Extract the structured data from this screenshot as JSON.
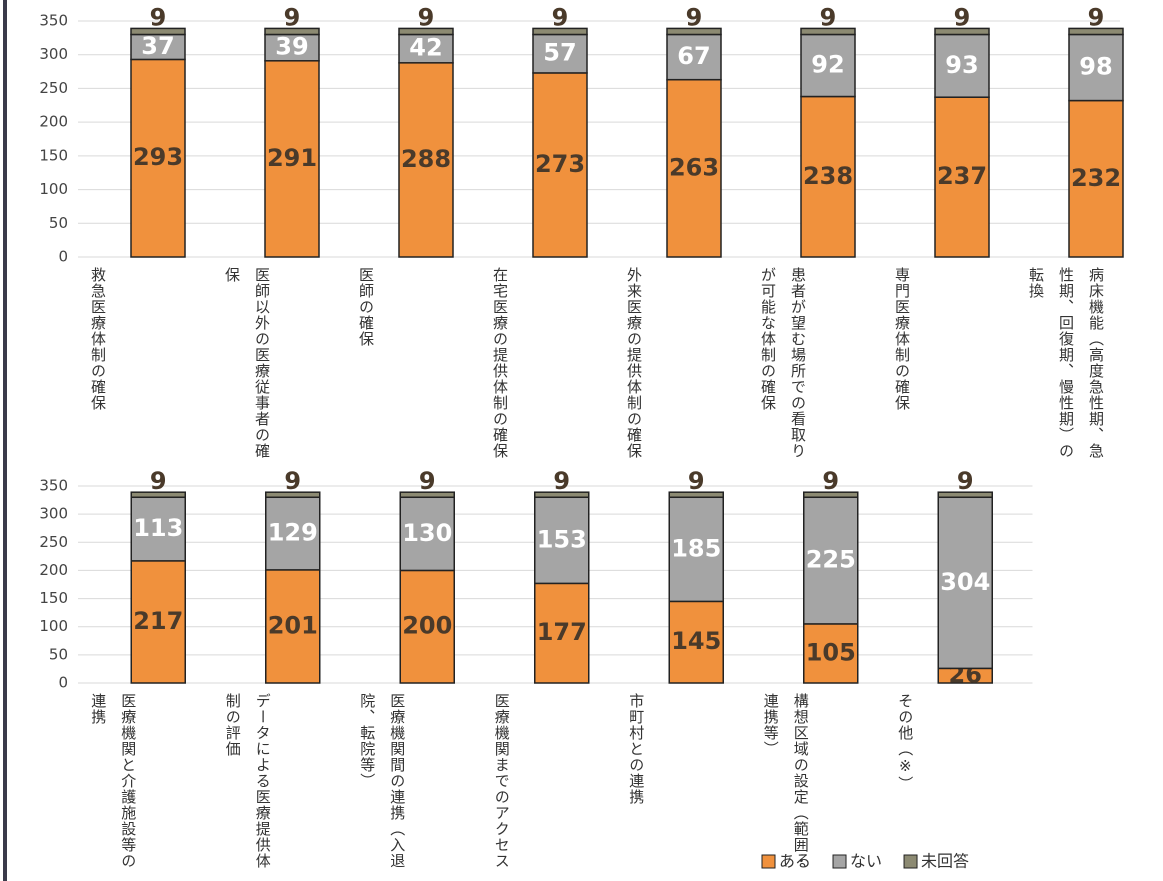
{
  "chart_data": [
    {
      "type": "bar",
      "stacked": true,
      "grid": true,
      "ylim": [
        0,
        350
      ],
      "yticks": [
        0,
        50,
        100,
        150,
        200,
        250,
        300,
        350
      ],
      "categories": [
        "救急医療体制の確保",
        "医師以外の医療従事者の確保",
        "医師の確保",
        "在宅医療の提供体制の確保",
        "外来医療の提供体制の確保",
        "患者が望む場所での看取りが可能な体制の確保",
        "専門医療体制の確保",
        "病床機能（高度急性期、急性期、回復期、慢性期）の転換"
      ],
      "series": [
        {
          "color": "#f0913d",
          "values": [
            293,
            291,
            288,
            273,
            263,
            238,
            237,
            232
          ]
        },
        {
          "color": "#a5a5a5",
          "values": [
            37,
            39,
            42,
            57,
            67,
            92,
            93,
            98
          ]
        },
        {
          "color": "#8c8a72",
          "values": [
            9,
            9,
            9,
            9,
            9,
            9,
            9,
            9
          ]
        }
      ]
    },
    {
      "type": "bar",
      "stacked": true,
      "grid": true,
      "legend": "lower right",
      "ylim": [
        0,
        350
      ],
      "yticks": [
        0,
        50,
        100,
        150,
        200,
        250,
        300,
        350
      ],
      "categories": [
        "医療機関と介護施設等の連携",
        "データによる医療提供体制の評価",
        "医療機関間の連携（入退院、転院等）",
        "医療機関までのアクセス",
        "市町村との連携",
        "構想区域の設定（範囲・連携等）",
        "その他（※）"
      ],
      "series": [
        {
          "name": "ある",
          "color": "#f0913d",
          "values": [
            217,
            201,
            200,
            177,
            145,
            105,
            26
          ]
        },
        {
          "name": "ない",
          "color": "#a5a5a5",
          "values": [
            113,
            129,
            130,
            153,
            185,
            225,
            304
          ]
        },
        {
          "name": "未回答",
          "color": "#8c8a72",
          "values": [
            9,
            9,
            9,
            9,
            9,
            9,
            9
          ]
        }
      ]
    }
  ]
}
